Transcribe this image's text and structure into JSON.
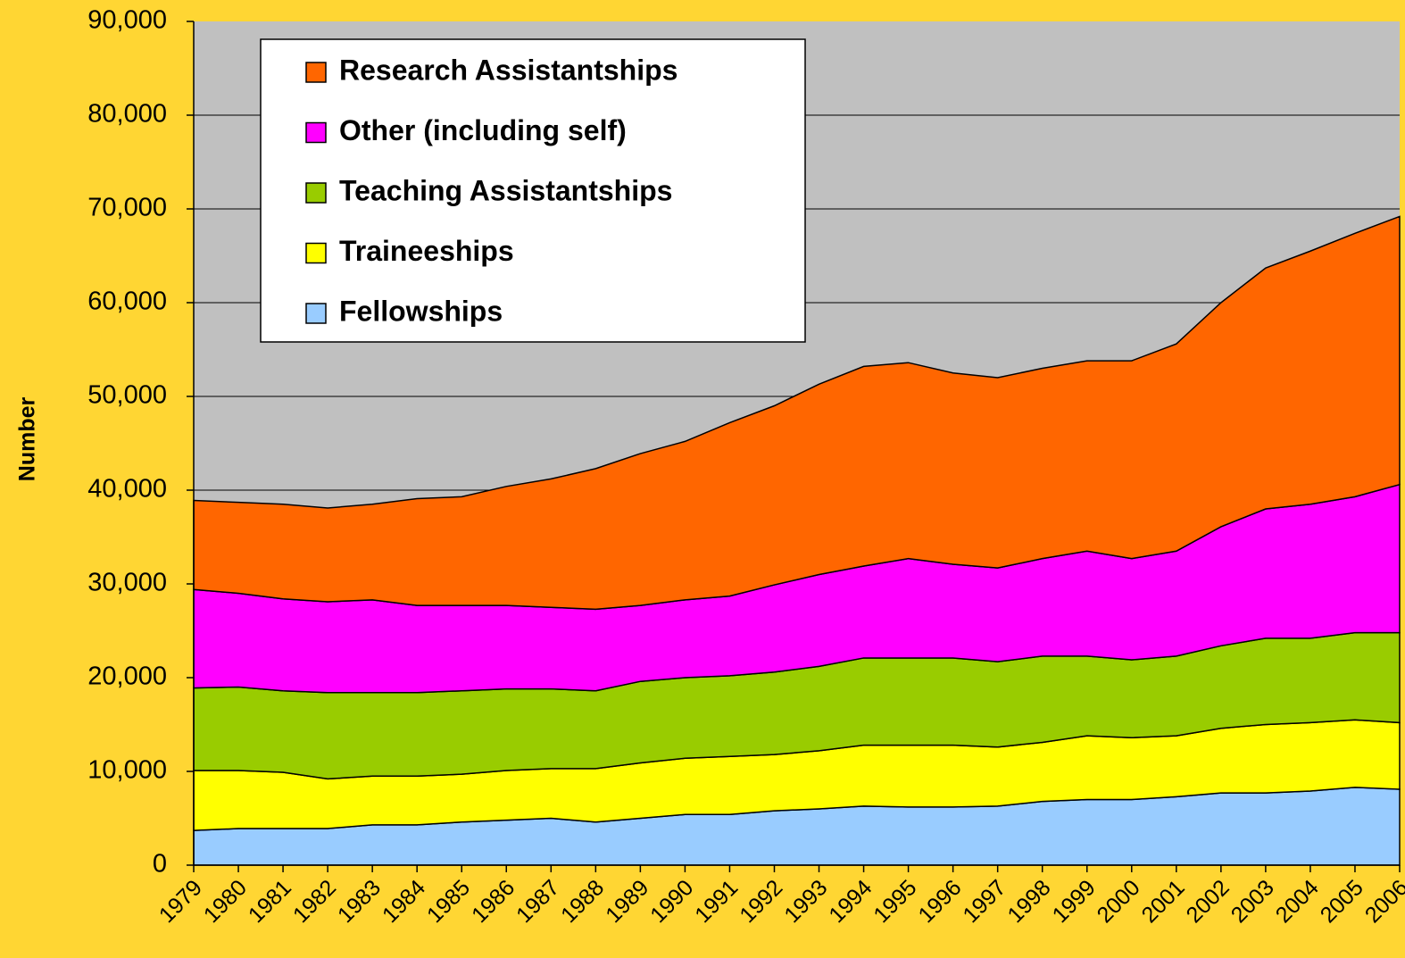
{
  "chart_data": {
    "type": "area",
    "stacked": true,
    "y_label": "Number",
    "categories": [
      "1979",
      "1980",
      "1981",
      "1982",
      "1983",
      "1984",
      "1985",
      "1986",
      "1987",
      "1988",
      "1989",
      "1990",
      "1991",
      "1992",
      "1993",
      "1994",
      "1995",
      "1996",
      "1997",
      "1998",
      "1999",
      "2000",
      "2001",
      "2002",
      "2003",
      "2004",
      "2005",
      "2006"
    ],
    "series": [
      {
        "name": "Fellowships",
        "color": "#99CCFF",
        "values": [
          3700,
          3900,
          3900,
          3900,
          4300,
          4300,
          4600,
          4800,
          5000,
          4600,
          5000,
          5400,
          5400,
          5800,
          6000,
          6300,
          6200,
          6200,
          6300,
          6800,
          7000,
          7000,
          7300,
          7700,
          7700,
          7900,
          8300,
          8100
        ]
      },
      {
        "name": "Traineeships",
        "color": "#FFFF00",
        "values": [
          6400,
          6200,
          6000,
          5300,
          5200,
          5200,
          5100,
          5300,
          5300,
          5700,
          5900,
          6000,
          6200,
          6000,
          6200,
          6500,
          6600,
          6600,
          6300,
          6300,
          6800,
          6600,
          6500,
          6900,
          7300,
          7300,
          7200,
          7100
        ]
      },
      {
        "name": "Teaching Assistantships",
        "color": "#99CC00",
        "values": [
          8800,
          8900,
          8700,
          9200,
          8900,
          8900,
          8900,
          8700,
          8500,
          8300,
          8700,
          8600,
          8600,
          8800,
          9000,
          9300,
          9300,
          9300,
          9100,
          9200,
          8500,
          8300,
          8500,
          8800,
          9200,
          9000,
          9300,
          9600
        ]
      },
      {
        "name": "Other (including self)",
        "color": "#FF00FF",
        "values": [
          10500,
          10000,
          9800,
          9700,
          9900,
          9300,
          9100,
          8900,
          8700,
          8700,
          8100,
          8300,
          8500,
          9300,
          9800,
          9800,
          10600,
          10000,
          10000,
          10400,
          11200,
          10800,
          11200,
          12700,
          13800,
          14300,
          14500,
          15800
        ]
      },
      {
        "name": "Research Assistantships",
        "color": "#FF6600",
        "values": [
          9500,
          9700,
          10100,
          10000,
          10200,
          11400,
          11600,
          12700,
          13700,
          15000,
          16200,
          16900,
          18500,
          19100,
          20300,
          21300,
          20900,
          20400,
          20300,
          20300,
          20300,
          21100,
          22100,
          23900,
          25700,
          27000,
          28100,
          28600
        ]
      }
    ],
    "ylim": [
      0,
      90000
    ],
    "yticks": [
      0,
      {
        "value": 10000,
        "label": "10,000"
      },
      {
        "value": 20000,
        "label": "20,000"
      },
      {
        "value": 30000,
        "label": "30,000"
      },
      {
        "value": 40000,
        "label": "40,000"
      },
      {
        "value": 50000,
        "label": "50,000"
      },
      {
        "value": 60000,
        "label": "60,000"
      },
      {
        "value": 70000,
        "label": "70,000"
      },
      {
        "value": 80000,
        "label": "80,000"
      },
      {
        "value": 90000,
        "label": "90,000"
      }
    ],
    "grid": true,
    "legend": "upper left",
    "plot_background": "#C0C0C0"
  }
}
